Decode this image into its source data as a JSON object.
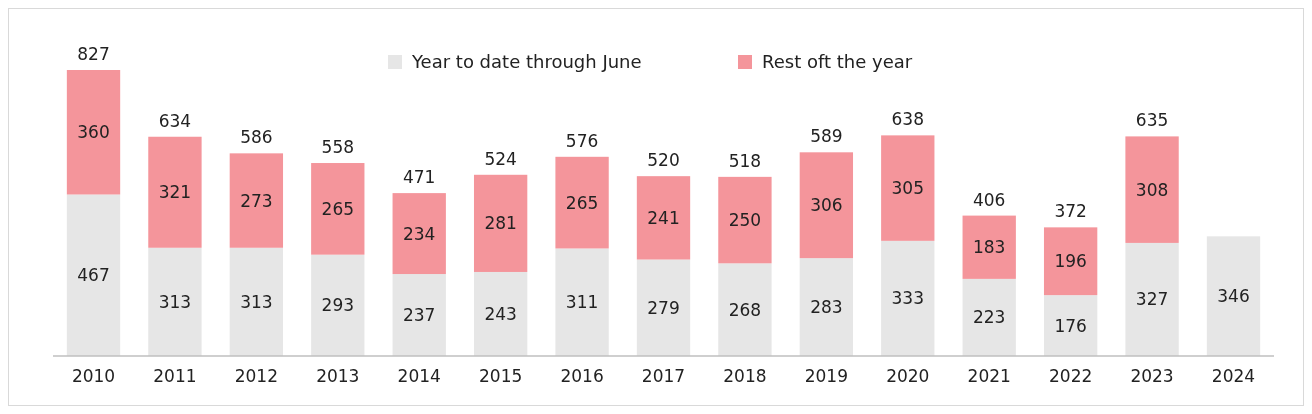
{
  "chart_data": {
    "type": "bar",
    "stacked": true,
    "data_labels": true,
    "legend": "top",
    "categories": [
      "2010",
      "2011",
      "2012",
      "2013",
      "2014",
      "2015",
      "2016",
      "2017",
      "2018",
      "2019",
      "2020",
      "2021",
      "2022",
      "2023",
      "2024"
    ],
    "series": [
      {
        "name": "Year to date through June",
        "color": "#e6e6e6",
        "values": [
          467,
          313,
          313,
          293,
          237,
          243,
          311,
          279,
          268,
          283,
          333,
          223,
          176,
          327,
          346
        ]
      },
      {
        "name": "Rest oft the year",
        "color": "#f4959b",
        "values": [
          360,
          321,
          273,
          265,
          234,
          281,
          265,
          241,
          250,
          306,
          305,
          183,
          196,
          308,
          null
        ]
      }
    ],
    "totals": [
      "827",
      "634",
      "586",
      "558",
      "471",
      "524",
      "576",
      "520",
      "518",
      "589",
      "638",
      "406",
      "372",
      "635",
      null
    ]
  }
}
